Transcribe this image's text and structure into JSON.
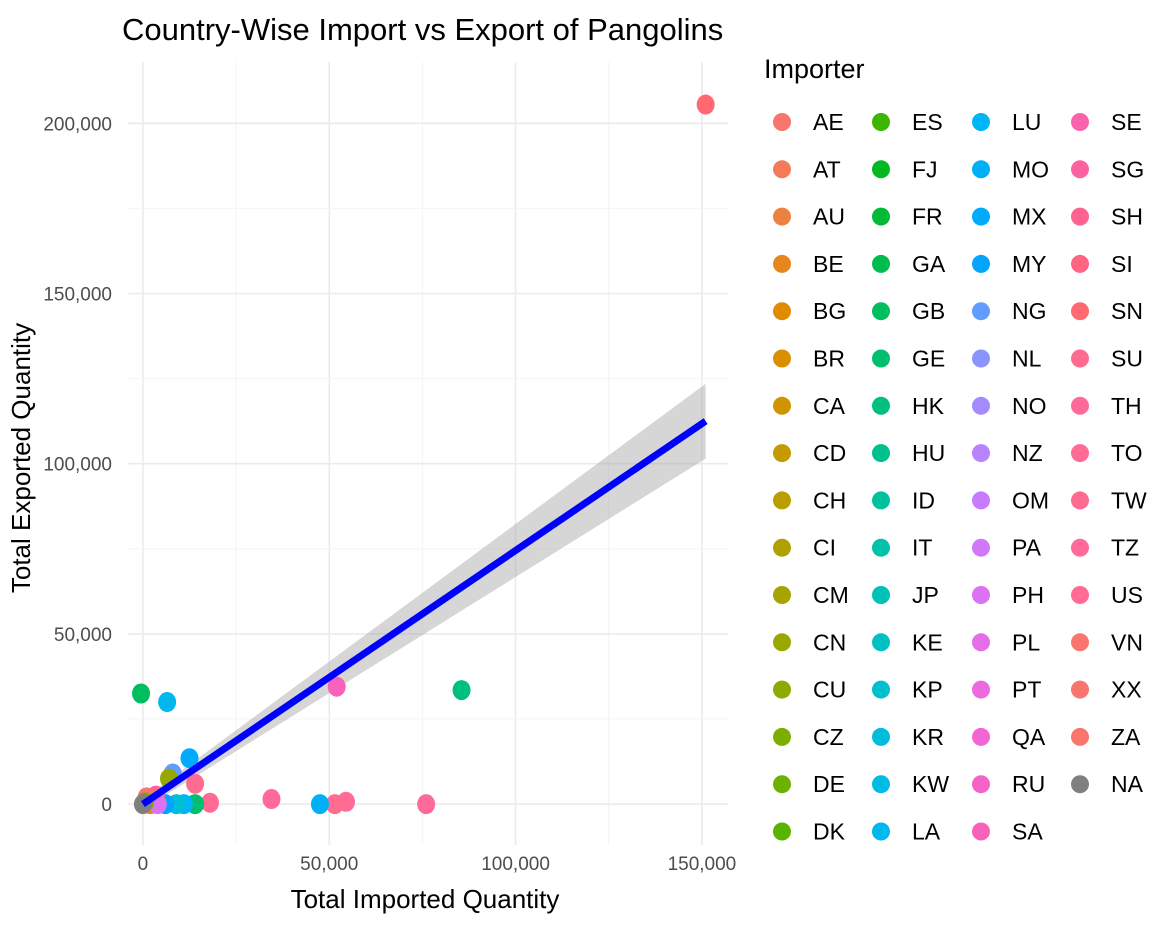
{
  "chart_data": {
    "type": "scatter",
    "title": "Country-Wise Import vs Export of Pangolins",
    "xlabel": "Total Imported Quantity",
    "ylabel": "Total Exported Quantity",
    "xlim": [
      -4000,
      157000
    ],
    "ylim": [
      -12000,
      218000
    ],
    "x_ticks": [
      0,
      50000,
      100000,
      150000
    ],
    "x_tick_labels": [
      "0",
      "50,000",
      "100,000",
      "150,000"
    ],
    "y_ticks": [
      0,
      50000,
      100000,
      150000,
      200000
    ],
    "y_tick_labels": [
      "0",
      "50,000",
      "100,000",
      "150,000",
      "200,000"
    ],
    "grid": true,
    "legend_position": "right",
    "legend_title": "Importer",
    "categories": [
      "AE",
      "AT",
      "AU",
      "BE",
      "BG",
      "BR",
      "CA",
      "CD",
      "CH",
      "CI",
      "CM",
      "CN",
      "CU",
      "CZ",
      "DE",
      "DK",
      "ES",
      "FJ",
      "FR",
      "GA",
      "GB",
      "GE",
      "HK",
      "HU",
      "ID",
      "IT",
      "JP",
      "KE",
      "KP",
      "KR",
      "KW",
      "LA",
      "LU",
      "MO",
      "MX",
      "MY",
      "NG",
      "NL",
      "NO",
      "NZ",
      "OM",
      "PA",
      "PH",
      "PL",
      "PT",
      "QA",
      "RU",
      "SA",
      "SE",
      "SG",
      "SH",
      "SI",
      "SN",
      "SU",
      "TH",
      "TO",
      "TW",
      "TZ",
      "US",
      "VN",
      "XX",
      "ZA",
      "NA"
    ],
    "colors": [
      "#F8766D",
      "#F37B59",
      "#ED8141",
      "#E7861B",
      "#E08B00",
      "#D89000",
      "#CF9400",
      "#C59900",
      "#BB9D00",
      "#B0A100",
      "#A5A400",
      "#98A800",
      "#8BAB00",
      "#7CAE00",
      "#6BB100",
      "#57B400",
      "#3CB600",
      "#00B81F",
      "#00BA38",
      "#00BB4E",
      "#00BD5F",
      "#00BE70",
      "#00BF80",
      "#00C08E",
      "#00C19C",
      "#00C1AA",
      "#00C1B7",
      "#00C0C3",
      "#00BFCF",
      "#00BDDA",
      "#00BBE4",
      "#00B8ED",
      "#00B5F6",
      "#00B0F6",
      "#00ABFD",
      "#00A5FF",
      "#619CFF",
      "#8A94FF",
      "#A58AFF",
      "#B983FF",
      "#C77CFF",
      "#D277FB",
      "#DC72F2",
      "#E56DE8",
      "#EC69DF",
      "#F265D4",
      "#F663C8",
      "#F962BB",
      "#FB61AD",
      "#FD619F",
      "#FF6290",
      "#FF6481",
      "#FF6972",
      "#FF6C91",
      "#FF6A98",
      "#FF6B95",
      "#FF6C91",
      "#FF6A98",
      "#FF6B95",
      "#F8766D",
      "#F8766D",
      "#F8766D",
      "#7F7F7F"
    ],
    "points": [
      {
        "importer": "SN",
        "x": 151000,
        "y": 205500
      },
      {
        "importer": "HK",
        "x": 85500,
        "y": 33500
      },
      {
        "importer": "SA",
        "x": 52000,
        "y": 34500
      },
      {
        "importer": "GB",
        "x": -500,
        "y": 32500
      },
      {
        "importer": "LA",
        "x": 6500,
        "y": 30000
      },
      {
        "importer": "MX",
        "x": 12500,
        "y": 13500
      },
      {
        "importer": "NG",
        "x": 8000,
        "y": 9000
      },
      {
        "importer": "CN",
        "x": 7000,
        "y": 7500
      },
      {
        "importer": "TW",
        "x": 14000,
        "y": 6000
      },
      {
        "importer": "TH",
        "x": 34500,
        "y": 1500
      },
      {
        "importer": "TO",
        "x": 54500,
        "y": 700
      },
      {
        "importer": "TW",
        "x": 51500,
        "y": 0
      },
      {
        "importer": "TZ",
        "x": 76000,
        "y": 0
      },
      {
        "importer": "MO",
        "x": 47500,
        "y": 0
      },
      {
        "importer": "US",
        "x": 18000,
        "y": 400
      },
      {
        "importer": "GE",
        "x": 14000,
        "y": 0
      },
      {
        "importer": "LU",
        "x": 11000,
        "y": 0
      },
      {
        "importer": "KR",
        "x": 9000,
        "y": 0
      },
      {
        "importer": "MY",
        "x": 6000,
        "y": 0
      },
      {
        "importer": "SG",
        "x": 3500,
        "y": 2500
      },
      {
        "importer": "AE",
        "x": 1000,
        "y": 2000
      },
      {
        "importer": "BE",
        "x": 2000,
        "y": 0
      },
      {
        "importer": "PH",
        "x": 4000,
        "y": 0
      },
      {
        "importer": "DE",
        "x": 500,
        "y": 500
      },
      {
        "importer": "NA",
        "x": 0,
        "y": 0
      }
    ],
    "trend_line": {
      "type": "linear",
      "x": [
        0,
        151000
      ],
      "y": [
        0,
        112500
      ],
      "ci_low": [
        -1500,
        101500
      ],
      "ci_high": [
        1500,
        123500
      ]
    }
  }
}
